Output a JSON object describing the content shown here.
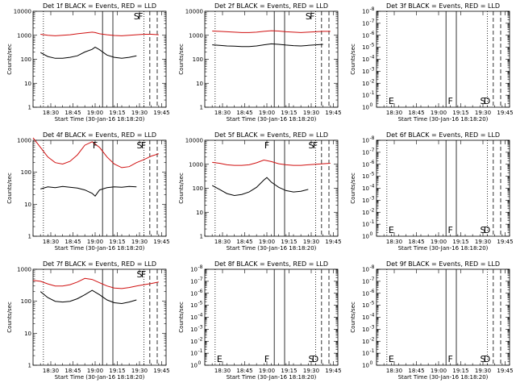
{
  "figure": {
    "title_template": "Det {n}f BLACK = Events, RED = LLD",
    "xlabel": "Start Time (30-Jan-16 18:18:20)",
    "ylabel": "Counts/sec",
    "xticks": [
      "18:30",
      "18:45",
      "19:00",
      "19:15",
      "19:30",
      "19:45"
    ],
    "colors": {
      "events": "#000000",
      "lld": "#d01010"
    },
    "legend": {
      "events": "BLACK = Events",
      "lld": "RED = LLD"
    },
    "markers": {
      "dotted": [
        "18:25",
        "19:33"
      ],
      "solid": [
        "19:05",
        "19:12"
      ],
      "dashed": [
        "19:37",
        "19:42"
      ]
    }
  },
  "chart_data": [
    {
      "type": "line",
      "det": "1",
      "title": "Det 1f BLACK = Events, RED = LLD",
      "ylabel": "Counts/sec",
      "xlabel": "Start Time (30-Jan-16 18:18:20)",
      "yscale": "log",
      "yticks": [
        "1",
        "10",
        "100",
        "1000",
        "10000"
      ],
      "xlim_min": [
        0,
        90
      ],
      "series": [
        {
          "name": "Events",
          "color": "#000000",
          "x": [
            5,
            10,
            15,
            20,
            25,
            30,
            35,
            40,
            42,
            45,
            50,
            55,
            60,
            65,
            70
          ],
          "y": [
            190,
            130,
            110,
            110,
            120,
            140,
            200,
            260,
            320,
            250,
            150,
            120,
            110,
            120,
            140
          ]
        },
        {
          "name": "LLD",
          "color": "#d01010",
          "x": [
            5,
            10,
            15,
            20,
            25,
            30,
            35,
            40,
            42,
            45,
            50,
            55,
            60,
            65,
            70,
            75,
            80,
            85
          ],
          "y": [
            1100,
            1000,
            950,
            1000,
            1050,
            1150,
            1250,
            1350,
            1300,
            1150,
            1050,
            980,
            950,
            1000,
            1050,
            1100,
            1100,
            1050
          ]
        }
      ],
      "markers": [
        {
          "x": 70,
          "label": "S",
          "dashed": "F"
        }
      ]
    },
    {
      "type": "line",
      "det": "2",
      "title": "Det 2f BLACK = Events, RED = LLD",
      "ylabel": "Counts/sec",
      "xlabel": "Start Time (30-Jan-16 18:18:20)",
      "yscale": "log",
      "yticks": [
        "1",
        "10",
        "100",
        "1000",
        "10000"
      ],
      "xlim_min": [
        0,
        90
      ],
      "series": [
        {
          "name": "Events",
          "color": "#000000",
          "x": [
            5,
            10,
            15,
            20,
            25,
            30,
            35,
            40,
            45,
            50,
            55,
            60,
            65,
            70,
            75,
            80
          ],
          "y": [
            400,
            380,
            360,
            350,
            340,
            340,
            360,
            400,
            440,
            420,
            390,
            370,
            360,
            380,
            400,
            420
          ]
        },
        {
          "name": "LLD",
          "color": "#d01010",
          "x": [
            5,
            10,
            15,
            20,
            25,
            30,
            35,
            40,
            45,
            50,
            55,
            60,
            65,
            70,
            75,
            80,
            85
          ],
          "y": [
            1500,
            1450,
            1400,
            1350,
            1300,
            1300,
            1350,
            1450,
            1550,
            1500,
            1400,
            1350,
            1300,
            1350,
            1400,
            1450,
            1450
          ]
        }
      ],
      "markers": [
        {
          "x": 70,
          "label": "S",
          "dashed": "F"
        }
      ]
    },
    {
      "type": "line",
      "det": "3",
      "title": "Det 3f BLACK = Events, RED = LLD",
      "ylabel": "Counts/sec",
      "xlabel": "Start Time (30-Jan-16 18:18:20)",
      "yscale": "log",
      "yticks": [
        "10^0",
        "10^-1",
        "10^-2",
        "10^-3",
        "10^-4",
        "10^-5",
        "10^-6",
        "10^-7",
        "10^-8"
      ],
      "xlim_min": [
        0,
        90
      ],
      "series": [],
      "markers": [
        {
          "x": 10,
          "label": "E"
        },
        {
          "x": 50,
          "label": "F"
        },
        {
          "x": 72,
          "label": "S",
          "dashed": "D"
        }
      ]
    },
    {
      "type": "line",
      "det": "4",
      "title": "Det 4f BLACK = Events, RED = LLD",
      "ylabel": "Counts/sec",
      "xlabel": "Start Time (30-Jan-16 18:18:20)",
      "yscale": "log",
      "yticks": [
        "1",
        "10",
        "100",
        "1000"
      ],
      "xlim_min": [
        0,
        90
      ],
      "series": [
        {
          "name": "Events",
          "color": "#000000",
          "x": [
            5,
            10,
            15,
            20,
            25,
            30,
            35,
            40,
            42,
            45,
            50,
            55,
            60,
            65,
            70
          ],
          "y": [
            30,
            35,
            33,
            36,
            34,
            32,
            28,
            22,
            18,
            28,
            33,
            35,
            34,
            36,
            35
          ]
        },
        {
          "name": "LLD",
          "color": "#d01010",
          "x": [
            0,
            5,
            10,
            15,
            20,
            25,
            30,
            35,
            40,
            45,
            50,
            55,
            60,
            65,
            70,
            75,
            80,
            85
          ],
          "y": [
            1200,
            600,
            300,
            200,
            180,
            220,
            350,
            700,
            900,
            600,
            300,
            180,
            140,
            150,
            200,
            250,
            320,
            380
          ]
        }
      ],
      "markers": [
        {
          "x": 42,
          "label": "F"
        },
        {
          "x": 72,
          "label": "S",
          "dashed": "F"
        }
      ]
    },
    {
      "type": "line",
      "det": "5",
      "title": "Det 5f BLACK = Events, RED = LLD",
      "ylabel": "Counts/sec",
      "xlabel": "Start Time (30-Jan-16 18:18:20)",
      "yscale": "log",
      "yticks": [
        "1",
        "10",
        "100",
        "1000",
        "10000"
      ],
      "xlim_min": [
        0,
        90
      ],
      "series": [
        {
          "name": "Events",
          "color": "#000000",
          "x": [
            5,
            10,
            15,
            20,
            25,
            30,
            35,
            40,
            42,
            45,
            50,
            55,
            60,
            65,
            70
          ],
          "y": [
            130,
            90,
            60,
            50,
            55,
            70,
            110,
            220,
            280,
            180,
            110,
            80,
            70,
            75,
            90
          ]
        },
        {
          "name": "LLD",
          "color": "#d01010",
          "x": [
            5,
            10,
            15,
            20,
            25,
            30,
            35,
            40,
            45,
            50,
            55,
            60,
            65,
            70,
            75,
            80,
            85
          ],
          "y": [
            1200,
            1100,
            950,
            900,
            900,
            950,
            1150,
            1500,
            1300,
            1050,
            950,
            900,
            900,
            950,
            1000,
            1050,
            1100
          ]
        }
      ],
      "markers": [
        {
          "x": 42,
          "label": "F"
        },
        {
          "x": 72,
          "label": "S",
          "dashed": "F"
        }
      ]
    },
    {
      "type": "line",
      "det": "6",
      "title": "Det 6f BLACK = Events, RED = LLD",
      "ylabel": "Counts/sec",
      "xlabel": "Start Time (30-Jan-16 18:18:20)",
      "yscale": "log",
      "yticks": [
        "10^0",
        "10^-1",
        "10^-2",
        "10^-3",
        "10^-4",
        "10^-5",
        "10^-6",
        "10^-7",
        "10^-8"
      ],
      "xlim_min": [
        0,
        90
      ],
      "series": [],
      "markers": [
        {
          "x": 10,
          "label": "E"
        },
        {
          "x": 50,
          "label": "F"
        },
        {
          "x": 72,
          "label": "S",
          "dashed": "D"
        }
      ]
    },
    {
      "type": "line",
      "det": "7",
      "title": "Det 7f BLACK = Events, RED = LLD",
      "ylabel": "Counts/sec",
      "xlabel": "Start Time (30-Jan-16 18:18:20)",
      "yscale": "log",
      "yticks": [
        "1",
        "10",
        "100",
        "1000"
      ],
      "xlim_min": [
        0,
        90
      ],
      "series": [
        {
          "name": "Events",
          "color": "#000000",
          "x": [
            5,
            10,
            15,
            20,
            25,
            30,
            35,
            40,
            45,
            50,
            55,
            60,
            65,
            70
          ],
          "y": [
            200,
            130,
            100,
            95,
            100,
            120,
            160,
            220,
            160,
            110,
            90,
            85,
            95,
            110
          ]
        },
        {
          "name": "LLD",
          "color": "#d01010",
          "x": [
            0,
            5,
            10,
            15,
            20,
            25,
            30,
            35,
            40,
            45,
            50,
            55,
            60,
            65,
            70,
            75,
            80,
            85
          ],
          "y": [
            450,
            420,
            350,
            300,
            300,
            330,
            400,
            520,
            480,
            380,
            300,
            260,
            250,
            270,
            300,
            330,
            360,
            400
          ]
        }
      ],
      "markers": [
        {
          "x": 72,
          "label": "S",
          "dashed": "F"
        }
      ]
    },
    {
      "type": "line",
      "det": "8",
      "title": "Det 8f BLACK = Events, RED = LLD",
      "ylabel": "Counts/sec",
      "xlabel": "Start Time (30-Jan-16 18:18:20)",
      "yscale": "log",
      "yticks": [
        "10^0",
        "10^-1",
        "10^-2",
        "10^-3",
        "10^-4",
        "10^-5",
        "10^-6",
        "10^-7",
        "10^-8"
      ],
      "xlim_min": [
        0,
        90
      ],
      "series": [],
      "markers": [
        {
          "x": 10,
          "label": "E"
        },
        {
          "x": 42,
          "label": "F"
        },
        {
          "x": 72,
          "label": "S",
          "dashed": "D"
        }
      ]
    },
    {
      "type": "line",
      "det": "9",
      "title": "Det 9f BLACK = Events, RED = LLD",
      "ylabel": "Counts/sec",
      "xlabel": "Start Time (30-Jan-16 18:18:20)",
      "yscale": "log",
      "yticks": [
        "10^0",
        "10^-1",
        "10^-2",
        "10^-3",
        "10^-4",
        "10^-5",
        "10^-6",
        "10^-7",
        "10^-8"
      ],
      "xlim_min": [
        0,
        90
      ],
      "series": [],
      "markers": [
        {
          "x": 10,
          "label": "E"
        },
        {
          "x": 50,
          "label": "F"
        },
        {
          "x": 72,
          "label": "S",
          "dashed": "D"
        }
      ]
    }
  ]
}
